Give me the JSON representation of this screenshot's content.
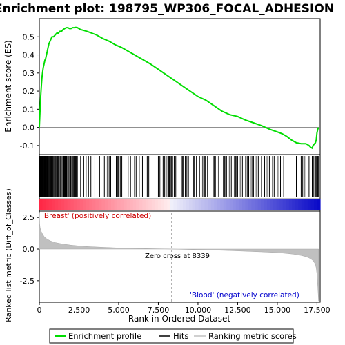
{
  "chart_data": {
    "type": "line",
    "title": "Enrichment plot: 198795_WP306_FOCAL_ADHESION",
    "xlabel": "Rank in Ordered Dataset",
    "top_ylabel": "Enrichment score (ES)",
    "bottom_ylabel": "Ranked list metric (Diff_of_Classes)",
    "xlim": [
      0,
      17700
    ],
    "top_ylim": [
      -0.15,
      0.6
    ],
    "bottom_ylim": [
      -4.2,
      3.0
    ],
    "x_ticks": [
      0,
      2500,
      5000,
      7500,
      10000,
      12500,
      15000,
      17500
    ],
    "x_tick_labels": [
      "0",
      "2,500",
      "5,000",
      "7,500",
      "10,000",
      "12,500",
      "15,000",
      "17,500"
    ],
    "top_y_ticks": [
      -0.1,
      0.0,
      0.1,
      0.2,
      0.3,
      0.4,
      0.5
    ],
    "top_y_tick_labels": [
      "-0.1",
      "0.0",
      "0.1",
      "0.2",
      "0.3",
      "0.4",
      "0.5"
    ],
    "bottom_y_ticks": [
      -2.5,
      0.0,
      2.5
    ],
    "bottom_y_tick_labels": [
      "-2.5",
      "0.0",
      "2.5"
    ],
    "zero_cross_label": "Zero cross at 8339",
    "zero_cross": 8339,
    "pos_label": "'Breast' (positively correlated)",
    "neg_label": "'Blood' (negatively correlated)",
    "legend": [
      {
        "label": "Enrichment profile",
        "color": "#00dd00"
      },
      {
        "label": "Hits",
        "color": "#000000"
      },
      {
        "label": "Ranking metric scores",
        "color": "#c0c0c0"
      }
    ],
    "series": [
      {
        "name": "Enrichment profile",
        "color": "#00dd00",
        "x": [
          0,
          40,
          80,
          120,
          160,
          200,
          250,
          300,
          350,
          400,
          450,
          500,
          550,
          600,
          650,
          700,
          750,
          800,
          900,
          1000,
          1100,
          1200,
          1300,
          1400,
          1500,
          1600,
          1700,
          1800,
          1900,
          2000,
          2100,
          2200,
          2300,
          2400,
          2600,
          2800,
          3000,
          3300,
          3600,
          4000,
          4400,
          4800,
          5200,
          5600,
          6000,
          6500,
          7000,
          7500,
          8000,
          8500,
          9000,
          9500,
          10000,
          10500,
          11000,
          11500,
          12000,
          12500,
          13000,
          13500,
          14000,
          14500,
          15000,
          15300,
          15600,
          15900,
          16200,
          16500,
          16800,
          17000,
          17100,
          17200,
          17250,
          17300,
          17350,
          17400,
          17450,
          17500,
          17550,
          17600
        ],
        "y": [
          0.0,
          0.08,
          0.16,
          0.22,
          0.27,
          0.3,
          0.33,
          0.35,
          0.37,
          0.38,
          0.4,
          0.42,
          0.44,
          0.46,
          0.47,
          0.48,
          0.49,
          0.5,
          0.5,
          0.51,
          0.52,
          0.52,
          0.53,
          0.53,
          0.54,
          0.545,
          0.55,
          0.55,
          0.545,
          0.545,
          0.55,
          0.55,
          0.552,
          0.55,
          0.54,
          0.535,
          0.53,
          0.52,
          0.51,
          0.49,
          0.475,
          0.455,
          0.44,
          0.42,
          0.4,
          0.375,
          0.35,
          0.32,
          0.29,
          0.26,
          0.23,
          0.2,
          0.17,
          0.15,
          0.12,
          0.09,
          0.07,
          0.06,
          0.04,
          0.025,
          0.01,
          -0.01,
          -0.025,
          -0.035,
          -0.05,
          -0.07,
          -0.085,
          -0.09,
          -0.09,
          -0.1,
          -0.11,
          -0.115,
          -0.1,
          -0.095,
          -0.09,
          -0.085,
          -0.07,
          -0.03,
          -0.01,
          0.0
        ]
      }
    ],
    "hits": [
      5,
      30,
      55,
      80,
      100,
      125,
      150,
      175,
      200,
      225,
      250,
      280,
      310,
      340,
      370,
      400,
      430,
      460,
      490,
      520,
      560,
      600,
      640,
      680,
      720,
      760,
      800,
      850,
      900,
      950,
      1000,
      1050,
      1100,
      1150,
      1200,
      1260,
      1320,
      1380,
      1440,
      1500,
      1530,
      1560,
      1590,
      1620,
      1650,
      1680,
      1710,
      1740,
      1800,
      1860,
      1920,
      1980,
      2040,
      2100,
      2160,
      2200,
      2240,
      2280,
      2320,
      2360,
      2400,
      2600,
      2800,
      2950,
      3100,
      3250,
      3500,
      3800,
      4100,
      4200,
      4300,
      4400,
      4500,
      4850,
      4900,
      4950,
      5000,
      5100,
      5200,
      5600,
      5750,
      5850,
      6000,
      6100,
      6300,
      6500,
      6800,
      6850,
      6900,
      7500,
      7600,
      7800,
      7900,
      8000,
      8100,
      8150,
      8200,
      8300,
      8350,
      8400,
      8500,
      8600,
      9000,
      9050,
      9100,
      9200,
      9300,
      9400,
      9700,
      9750,
      9800,
      9900,
      10100,
      10200,
      10300,
      10400,
      10450,
      10500,
      10600,
      11000,
      11050,
      11100,
      11200,
      11300,
      11600,
      11650,
      11700,
      11800,
      11900,
      12000,
      12100,
      12200,
      12300,
      12350,
      12400,
      12500,
      12600,
      12700,
      12800,
      13000,
      13100,
      13200,
      13300,
      13400,
      13500,
      13600,
      13700,
      13800,
      13850,
      14000,
      14200,
      14300,
      14400,
      14500,
      14700,
      14800,
      15000,
      15100,
      15200,
      15400,
      16200,
      16500,
      16600,
      16700,
      16800,
      17000,
      17200,
      17300,
      17400,
      17450,
      17500,
      17550,
      17600
    ],
    "metric": {
      "x": [
        0,
        20,
        50,
        100,
        200,
        300,
        400,
        500,
        700,
        1000,
        1300,
        1600,
        2000,
        2500,
        3000,
        4000,
        5000,
        6000,
        7000,
        8000,
        8339,
        9000,
        10000,
        11000,
        12000,
        13000,
        14000,
        15000,
        15500,
        16000,
        16500,
        16800,
        17000,
        17200,
        17300,
        17400,
        17450,
        17500,
        17550,
        17600
      ],
      "y": [
        2.9,
        2.0,
        1.7,
        1.45,
        1.2,
        1.0,
        0.88,
        0.78,
        0.65,
        0.52,
        0.44,
        0.38,
        0.31,
        0.25,
        0.2,
        0.14,
        0.09,
        0.06,
        0.03,
        0.01,
        0.0,
        -0.02,
        -0.05,
        -0.08,
        -0.12,
        -0.17,
        -0.22,
        -0.28,
        -0.33,
        -0.4,
        -0.5,
        -0.6,
        -0.7,
        -0.85,
        -1.0,
        -1.2,
        -1.5,
        -2.0,
        -3.0,
        -4.1
      ]
    }
  }
}
